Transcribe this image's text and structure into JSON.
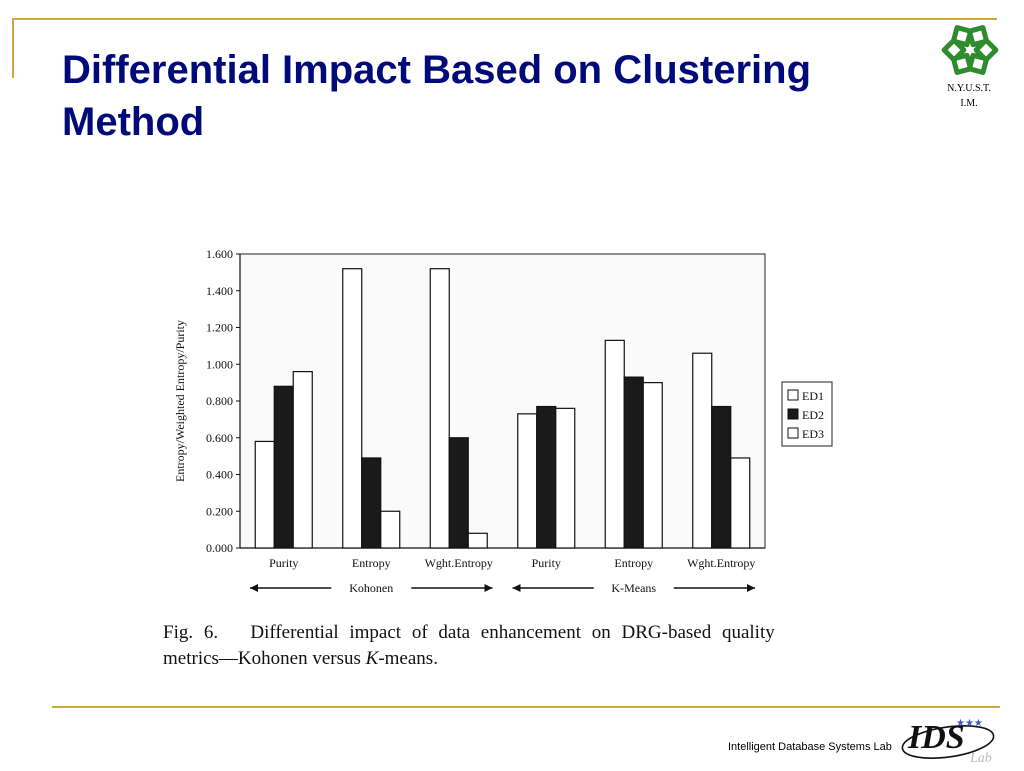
{
  "slide": {
    "title": "Differential Impact Based on Clustering Method",
    "logo_lines": [
      "N.Y.U.S.T.",
      "I.M."
    ],
    "caption_line1": "Fig. 6.   Differential impact of data enhancement on DRG-based quality",
    "caption_line2_prefix": "metrics—Kohonen versus ",
    "caption_line2_k": "K",
    "caption_line2_suffix": "-means.",
    "footer_text": "Intelligent Database Systems Lab",
    "footer_logo_text": "IDS",
    "footer_logo_subtext": "Lab"
  },
  "colors": {
    "title": "#000a78",
    "rule": "#d4a73a",
    "logo_green": "#2e8b2e",
    "bar_stroke": "#111111",
    "ed2_fill": "#1a1a1a",
    "ed_light_fill": "#ffffff"
  },
  "chart_data": {
    "type": "bar",
    "ylabel": "Entropy/Weighted Entropy/Purity",
    "ylim": [
      0,
      1.6
    ],
    "yticks": [
      "0.000",
      "0.200",
      "0.400",
      "0.600",
      "0.800",
      "1.000",
      "1.200",
      "1.400",
      "1.600"
    ],
    "categories": [
      "Purity",
      "Entropy",
      "Wght.Entropy",
      "Purity",
      "Entropy",
      "Wght.Entropy"
    ],
    "groups": [
      {
        "label": "Kohonen",
        "categories": [
          0,
          1,
          2
        ]
      },
      {
        "label": "K-Means",
        "categories": [
          3,
          4,
          5
        ]
      }
    ],
    "series": [
      {
        "name": "ED1",
        "values": [
          0.58,
          1.52,
          1.52,
          0.73,
          1.13,
          1.06
        ]
      },
      {
        "name": "ED2",
        "values": [
          0.88,
          0.49,
          0.6,
          0.77,
          0.93,
          0.77
        ]
      },
      {
        "name": "ED3",
        "values": [
          0.96,
          0.2,
          0.08,
          0.76,
          0.9,
          0.49
        ]
      }
    ],
    "legend_position": "right",
    "grid": false
  }
}
